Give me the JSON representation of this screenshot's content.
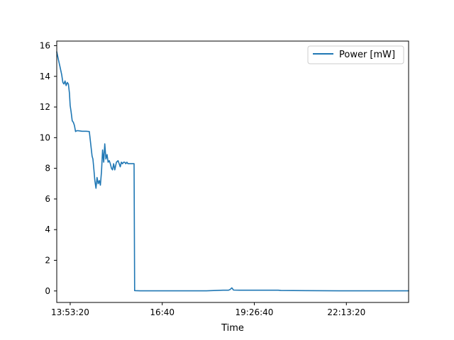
{
  "chart_data": {
    "type": "line",
    "title": "",
    "xlabel": "Time",
    "ylabel": "",
    "x_tick_labels": [
      "13:53:20",
      "16:40",
      "19:26:40",
      "22:13:20"
    ],
    "x_tick_values": [
      "13:53:20",
      "16:40:00",
      "19:26:40",
      "22:13:20"
    ],
    "xlim": [
      "13:29:00",
      "24:06:00"
    ],
    "y_ticks": [
      0,
      2,
      4,
      6,
      8,
      10,
      12,
      14,
      16
    ],
    "y_tick_labels": [
      "0",
      "2",
      "4",
      "6",
      "8",
      "10",
      "12",
      "14",
      "16"
    ],
    "ylim": [
      -0.75,
      16.3
    ],
    "grid": false,
    "legend": {
      "position": "top-right"
    },
    "series": [
      {
        "name": "Power [mW]",
        "color": "#1f77b4",
        "x": [
          "13:29:00",
          "13:32:00",
          "13:35:00",
          "13:38:00",
          "13:40:00",
          "13:42:00",
          "13:44:00",
          "13:46:00",
          "13:48:00",
          "13:50:00",
          "13:52:00",
          "13:53:20",
          "13:55:00",
          "13:57:00",
          "13:59:00",
          "14:01:00",
          "14:03:00",
          "14:05:00",
          "14:08:00",
          "14:15:00",
          "14:22:00",
          "14:28:00",
          "14:33:00",
          "14:34:30",
          "14:36:00",
          "14:38:00",
          "14:40:00",
          "14:42:00",
          "14:44:00",
          "14:46:00",
          "14:48:00",
          "14:50:00",
          "14:52:00",
          "14:54:00",
          "14:56:00",
          "14:58:00",
          "15:00:00",
          "15:02:00",
          "15:04:00",
          "15:06:00",
          "15:08:00",
          "15:10:00",
          "15:12:00",
          "15:14:00",
          "15:17:00",
          "15:20:00",
          "15:22:00",
          "15:24:00",
          "15:26:00",
          "15:28:00",
          "15:30:00",
          "15:32:00",
          "15:34:00",
          "15:36:00",
          "15:38:00",
          "15:40:00",
          "15:42:00",
          "15:45:00",
          "15:49:00",
          "15:50:00",
          "16:00:00",
          "17:00:00",
          "18:00:00",
          "18:30:00",
          "18:40:00",
          "18:43:00",
          "18:46:00",
          "18:49:00",
          "19:00:00",
          "19:30:00",
          "20:10:00",
          "20:15:00",
          "21:00:00",
          "22:00:00",
          "23:00:00",
          "24:06:00"
        ],
        "y": [
          15.6,
          15.1,
          14.6,
          14.1,
          13.6,
          13.5,
          13.7,
          13.4,
          13.6,
          13.5,
          12.9,
          12.1,
          11.7,
          11.1,
          11.0,
          10.8,
          10.4,
          10.45,
          10.45,
          10.42,
          10.42,
          10.4,
          8.8,
          8.6,
          8.0,
          7.2,
          6.7,
          7.4,
          7.0,
          7.2,
          6.9,
          7.8,
          9.2,
          8.4,
          9.6,
          8.6,
          8.9,
          8.4,
          8.5,
          8.3,
          8.0,
          7.9,
          8.3,
          7.9,
          8.4,
          8.5,
          8.3,
          8.1,
          8.4,
          8.3,
          8.4,
          8.4,
          8.3,
          8.4,
          8.3,
          8.3,
          8.3,
          8.3,
          8.3,
          0.02,
          0.01,
          0.01,
          0.01,
          0.05,
          0.05,
          0.1,
          0.2,
          0.06,
          0.05,
          0.05,
          0.05,
          0.03,
          0.02,
          0.01,
          0.01,
          0.01
        ]
      }
    ]
  }
}
